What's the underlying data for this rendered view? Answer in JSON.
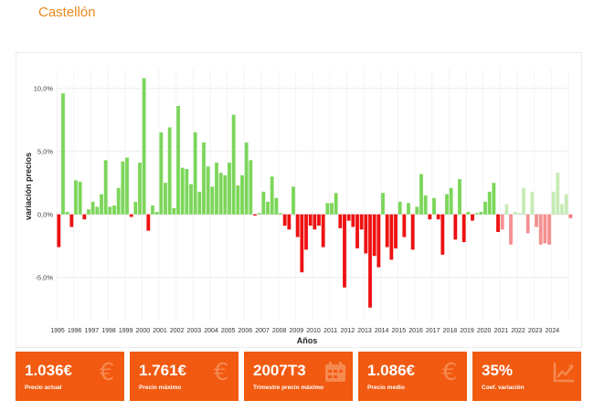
{
  "title": "Castellón",
  "chart_data": {
    "type": "bar",
    "xlabel": "Años",
    "ylabel": "variación precios",
    "ylim": [
      -0.085,
      0.115
    ],
    "yticks": [
      {
        "value": 0.1,
        "label": "10,0%"
      },
      {
        "value": 0.05,
        "label": "5,0%"
      },
      {
        "value": 0.0,
        "label": "0,0%"
      },
      {
        "value": -0.05,
        "label": "-5,0%"
      }
    ],
    "year_labels": [
      "1995",
      "1996",
      "1997",
      "1998",
      "1999",
      "2000",
      "2001",
      "2002",
      "2003",
      "2004",
      "2005",
      "2006",
      "2007",
      "2008",
      "2009",
      "2010",
      "2011",
      "2012",
      "2013",
      "2014",
      "2015",
      "2016",
      "2017",
      "2018",
      "2019",
      "2020",
      "2021",
      "2022",
      "2023",
      "2024"
    ],
    "start_year": 1995,
    "periods_per_year": 4,
    "values": [
      -0.026,
      0.096,
      0.002,
      -0.01,
      0.027,
      0.026,
      -0.004,
      0.004,
      0.01,
      0.006,
      0.016,
      0.043,
      0.006,
      0.007,
      0.021,
      0.042,
      0.045,
      -0.002,
      0.01,
      0.041,
      0.108,
      -0.013,
      0.007,
      0.002,
      0.065,
      0.025,
      0.069,
      0.005,
      0.086,
      0.037,
      0.036,
      0.024,
      0.065,
      0.018,
      0.057,
      0.038,
      0.022,
      0.041,
      0.033,
      0.031,
      0.041,
      0.079,
      0.023,
      0.031,
      0.057,
      0.043,
      -0.001,
      0.001,
      0.018,
      0.01,
      0.03,
      0.013,
      0.001,
      -0.009,
      -0.012,
      0.022,
      -0.018,
      -0.046,
      -0.028,
      -0.009,
      -0.012,
      -0.009,
      -0.026,
      0.009,
      0.009,
      0.017,
      -0.011,
      -0.058,
      -0.005,
      -0.01,
      -0.027,
      -0.012,
      -0.031,
      -0.074,
      -0.033,
      -0.042,
      0.017,
      -0.026,
      -0.036,
      -0.027,
      0.01,
      -0.018,
      0.009,
      -0.028,
      0.006,
      0.032,
      0.015,
      -0.004,
      0.013,
      -0.004,
      -0.032,
      0.016,
      0.021,
      -0.02,
      0.028,
      -0.022,
      0.002,
      -0.005,
      0.001,
      0.002,
      0.01,
      0.018,
      0.025,
      -0.014,
      -0.012,
      0.008,
      -0.024,
      0.002,
      0.001,
      0.021,
      -0.015,
      0.018,
      -0.01,
      -0.024,
      -0.023,
      -0.024,
      0.018,
      0.033,
      0.008,
      0.016,
      -0.003
    ],
    "colors": {
      "positive": "#7cd65a",
      "negative": "#ee1111",
      "positive_recent": "#c6ecb4",
      "negative_recent": "#f59090",
      "last": "#f77a7a"
    },
    "recent_from_index": 104,
    "grid": true
  },
  "kpis": [
    {
      "value": "1.036€",
      "label": "Precio actual",
      "icon": "euro-icon"
    },
    {
      "value": "1.761€",
      "label": "Precio máximo",
      "icon": "euro-icon"
    },
    {
      "value": "2007T3",
      "label": "Trimestre precio máximo",
      "icon": "calendar-icon"
    },
    {
      "value": "1.086€",
      "label": "Precio medio",
      "icon": "euro-icon"
    },
    {
      "value": "35%",
      "label": "Coef. variación",
      "icon": "trend-chart-icon"
    }
  ]
}
